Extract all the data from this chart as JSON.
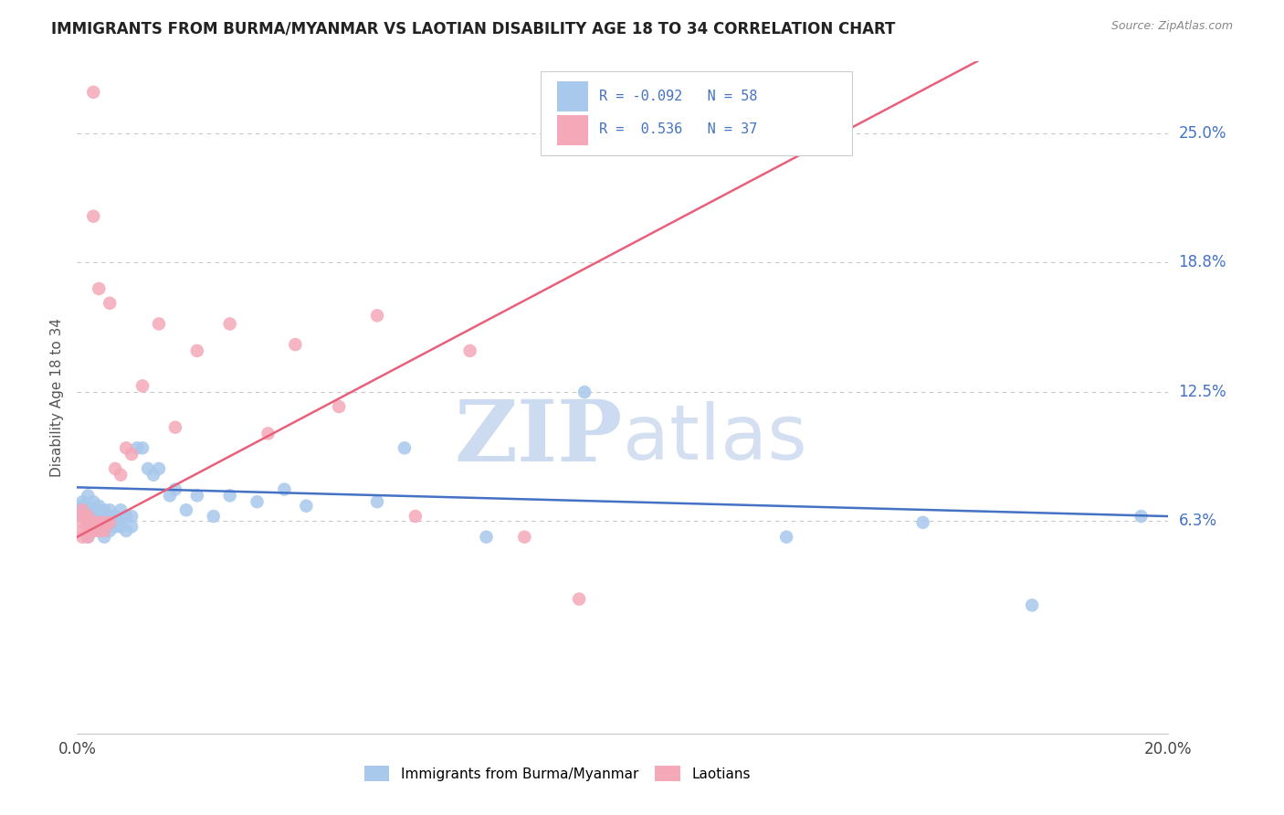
{
  "title": "IMMIGRANTS FROM BURMA/MYANMAR VS LAOTIAN DISABILITY AGE 18 TO 34 CORRELATION CHART",
  "source": "Source: ZipAtlas.com",
  "ylabel": "Disability Age 18 to 34",
  "color_blue": "#A8C8EC",
  "color_pink": "#F4A8B8",
  "color_trend_blue": "#4472C4",
  "color_trend_pink": "#E8607A",
  "color_title": "#222222",
  "color_source": "#999999",
  "color_ytick": "#4472C4",
  "color_xtick": "#444444",
  "color_grid": "#C8C8C8",
  "color_watermark_zip": "#C8D8F0",
  "color_watermark_atlas": "#B0C4E0",
  "ytick_values": [
    0.063,
    0.125,
    0.188,
    0.25
  ],
  "ytick_labels": [
    "6.3%",
    "12.5%",
    "18.8%",
    "25.0%"
  ],
  "xlim": [
    0.0,
    0.2
  ],
  "ylim": [
    -0.04,
    0.285
  ],
  "blue_x": [
    0.001,
    0.001,
    0.001,
    0.001,
    0.002,
    0.002,
    0.002,
    0.002,
    0.002,
    0.003,
    0.003,
    0.003,
    0.003,
    0.003,
    0.004,
    0.004,
    0.004,
    0.004,
    0.005,
    0.005,
    0.005,
    0.005,
    0.005,
    0.006,
    0.006,
    0.006,
    0.006,
    0.007,
    0.007,
    0.008,
    0.008,
    0.008,
    0.009,
    0.009,
    0.01,
    0.01,
    0.011,
    0.012,
    0.013,
    0.014,
    0.015,
    0.017,
    0.018,
    0.02,
    0.022,
    0.025,
    0.028,
    0.033,
    0.038,
    0.042,
    0.055,
    0.06,
    0.075,
    0.093,
    0.13,
    0.155,
    0.175,
    0.195
  ],
  "blue_y": [
    0.065,
    0.068,
    0.07,
    0.072,
    0.055,
    0.06,
    0.065,
    0.07,
    0.075,
    0.058,
    0.062,
    0.065,
    0.068,
    0.072,
    0.058,
    0.062,
    0.065,
    0.07,
    0.055,
    0.058,
    0.062,
    0.065,
    0.068,
    0.058,
    0.062,
    0.065,
    0.068,
    0.06,
    0.065,
    0.06,
    0.062,
    0.068,
    0.058,
    0.065,
    0.06,
    0.065,
    0.098,
    0.098,
    0.088,
    0.085,
    0.088,
    0.075,
    0.078,
    0.068,
    0.075,
    0.065,
    0.075,
    0.072,
    0.078,
    0.07,
    0.072,
    0.098,
    0.055,
    0.125,
    0.055,
    0.062,
    0.022,
    0.065
  ],
  "pink_x": [
    0.001,
    0.001,
    0.001,
    0.001,
    0.001,
    0.002,
    0.002,
    0.002,
    0.002,
    0.003,
    0.003,
    0.003,
    0.003,
    0.004,
    0.004,
    0.004,
    0.005,
    0.005,
    0.006,
    0.006,
    0.007,
    0.008,
    0.009,
    0.01,
    0.012,
    0.015,
    0.018,
    0.022,
    0.028,
    0.035,
    0.04,
    0.048,
    0.055,
    0.062,
    0.072,
    0.082,
    0.092
  ],
  "pink_y": [
    0.055,
    0.058,
    0.062,
    0.065,
    0.068,
    0.055,
    0.058,
    0.062,
    0.065,
    0.058,
    0.062,
    0.21,
    0.27,
    0.058,
    0.062,
    0.175,
    0.058,
    0.062,
    0.062,
    0.168,
    0.088,
    0.085,
    0.098,
    0.095,
    0.128,
    0.158,
    0.108,
    0.145,
    0.158,
    0.105,
    0.148,
    0.118,
    0.162,
    0.065,
    0.145,
    0.055,
    0.025
  ],
  "blue_trend_x": [
    0.0,
    0.2
  ],
  "blue_trend_y": [
    0.079,
    0.065
  ],
  "pink_trend_x": [
    0.0,
    0.165
  ],
  "pink_trend_y": [
    0.055,
    0.285
  ],
  "legend_text1": "R = -0.092   N = 58",
  "legend_text2": "R =  0.536   N = 37",
  "legend_label1": "Immigrants from Burma/Myanmar",
  "legend_label2": "Laotians"
}
